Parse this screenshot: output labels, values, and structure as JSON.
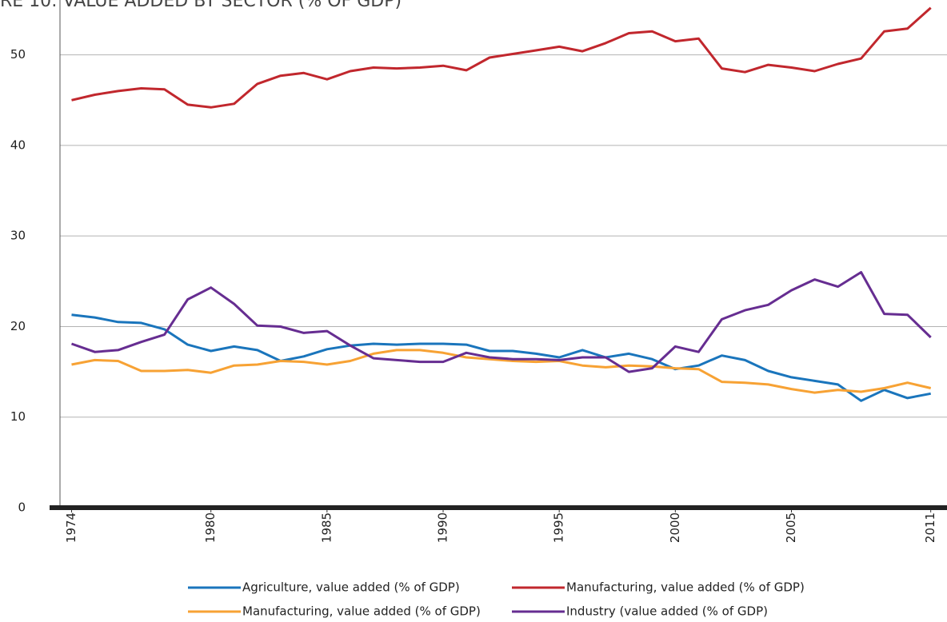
{
  "chart_data": {
    "type": "line",
    "title": "RE 10: VALUE ADDED BY SECTOR (% OF GDP)",
    "x": [
      1974,
      1975,
      1976,
      1977,
      1978,
      1979,
      1980,
      1981,
      1982,
      1983,
      1984,
      1985,
      1986,
      1987,
      1988,
      1989,
      1990,
      1991,
      1992,
      1993,
      1994,
      1995,
      1996,
      1997,
      1998,
      1999,
      2000,
      2001,
      2002,
      2003,
      2004,
      2005,
      2006,
      2007,
      2008,
      2009,
      2010,
      2011
    ],
    "series": [
      {
        "name": "Agriculture, value added (% of GDP)",
        "color": "#1a75bc",
        "values": [
          21.3,
          21.0,
          20.5,
          20.4,
          19.7,
          18.0,
          17.3,
          17.8,
          17.4,
          16.2,
          16.7,
          17.5,
          17.9,
          18.1,
          18.0,
          18.1,
          18.1,
          18.0,
          17.3,
          17.3,
          17.0,
          16.6,
          17.4,
          16.6,
          17.0,
          16.4,
          15.3,
          15.7,
          16.8,
          16.3,
          15.1,
          14.4,
          14.0,
          13.6,
          11.8,
          13.0,
          12.1,
          12.6
        ]
      },
      {
        "name": "Manufacturing, value added (% of GDP)",
        "color": "#c1272d",
        "values": [
          45.0,
          45.6,
          46.0,
          46.3,
          46.2,
          44.5,
          44.2,
          44.6,
          46.8,
          47.7,
          48.0,
          47.3,
          48.2,
          48.6,
          48.5,
          48.6,
          48.8,
          48.3,
          49.7,
          50.1,
          50.5,
          50.9,
          50.4,
          51.3,
          52.4,
          52.6,
          51.5,
          51.8,
          48.5,
          48.1,
          48.9,
          48.6,
          48.2,
          49.0,
          49.6,
          52.6,
          52.9,
          55.2
        ]
      },
      {
        "name": "Manufacturing, value added (% of GDP)",
        "color": "#f7a234",
        "values": [
          15.8,
          16.3,
          16.2,
          15.1,
          15.1,
          15.2,
          14.9,
          15.7,
          15.8,
          16.2,
          16.1,
          15.8,
          16.2,
          17.0,
          17.4,
          17.4,
          17.1,
          16.6,
          16.4,
          16.2,
          16.1,
          16.2,
          15.7,
          15.5,
          15.7,
          15.6,
          15.4,
          15.3,
          13.9,
          13.8,
          13.6,
          13.1,
          12.7,
          13.0,
          12.8,
          13.2,
          13.8,
          13.2
        ]
      },
      {
        "name": "Industry (value added (% of GDP)",
        "color": "#662d91",
        "values": [
          18.1,
          17.2,
          17.4,
          18.3,
          19.1,
          23.0,
          24.3,
          22.5,
          20.1,
          20.0,
          19.3,
          19.5,
          17.9,
          16.5,
          16.3,
          16.1,
          16.1,
          17.1,
          16.6,
          16.4,
          16.4,
          16.3,
          16.6,
          16.6,
          15.0,
          15.4,
          17.8,
          17.2,
          20.8,
          21.8,
          22.4,
          24.0,
          25.2,
          24.4,
          26.0,
          21.4,
          21.3,
          18.8
        ]
      }
    ],
    "xlim": [
      1973.5,
      2011.7
    ],
    "xticks": [
      1974,
      1980,
      1985,
      1990,
      1995,
      2000,
      2005,
      2011
    ],
    "ylim": [
      0,
      55
    ],
    "yticks": [
      0,
      10,
      20,
      30,
      40,
      50
    ],
    "grid": true
  }
}
